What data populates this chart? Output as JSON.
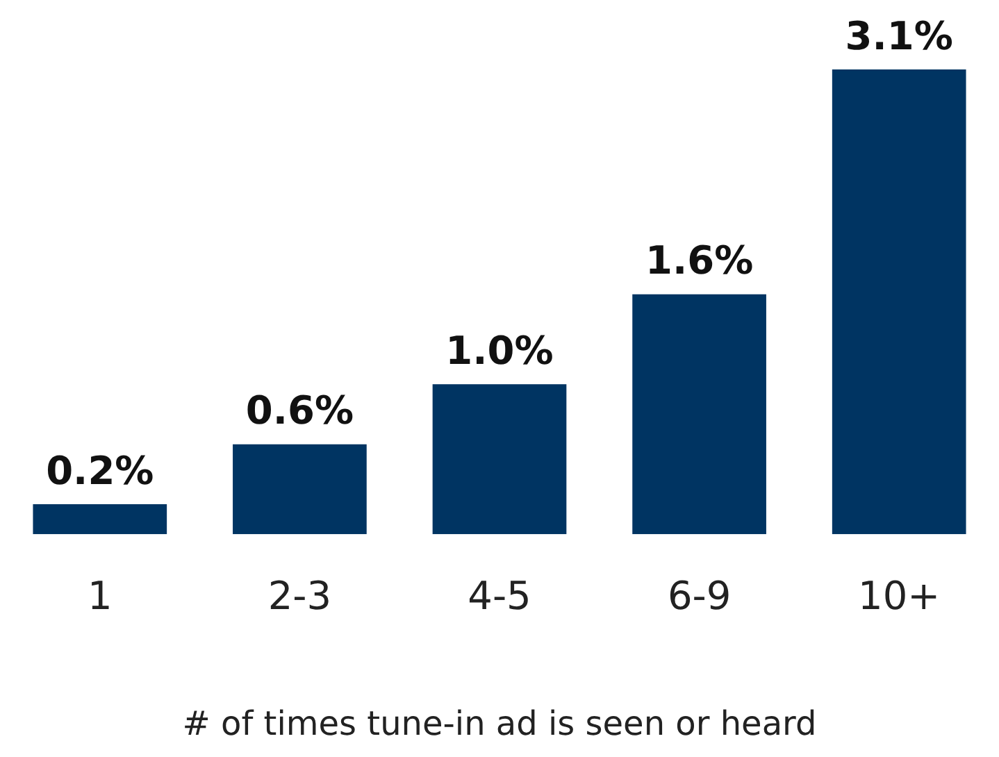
{
  "chart_data": {
    "type": "bar",
    "xlabel": "# of times tune-in ad is seen or heard",
    "categories": [
      "1",
      "2-3",
      "4-5",
      "6-9",
      "10+"
    ],
    "values": [
      0.2,
      0.6,
      1.0,
      1.6,
      3.1
    ],
    "value_labels": [
      "0.2%",
      "0.6%",
      "1.0%",
      "1.6%",
      "3.1%"
    ],
    "color": "#003462",
    "grid": false,
    "legend": false
  }
}
